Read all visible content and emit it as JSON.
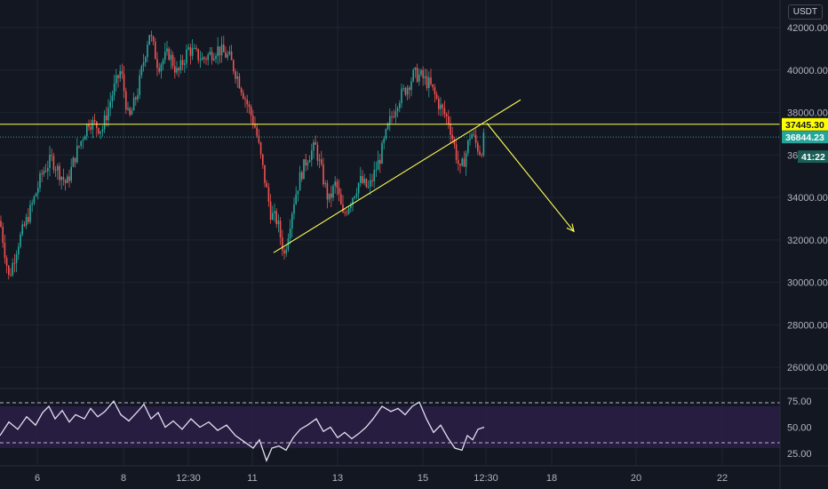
{
  "currency": "USDT",
  "colors": {
    "background": "#131722",
    "grid": "#1f2433",
    "up": "#26a69a",
    "down": "#ef5350",
    "annotation": "#ffff55",
    "rsi_line": "#e3e0f0",
    "rsi_band": "#2a1f45",
    "price_tag": "#26a69a",
    "level_tag": "#ffff00"
  },
  "chart_data": [
    {
      "type": "candlestick",
      "title": "",
      "xlabel": "",
      "ylabel": "",
      "x_tick_labels": [
        "6",
        "8",
        "12:30",
        "11",
        "13",
        "15",
        "12:30",
        "18",
        "20",
        "22"
      ],
      "y_tick_labels": [
        "42000.00",
        "40000.00",
        "38000.00",
        "36000.00",
        "34000.00",
        "32000.00",
        "30000.00",
        "28000.00",
        "26000.00"
      ],
      "ylim": [
        25000,
        43300
      ],
      "grid": true,
      "horizontal_level": 37445.3,
      "horizontal_level_label": "37445.30",
      "last_price": 36844.23,
      "last_price_label": "36844.23",
      "countdown_label": "41:22",
      "close_path": [
        [
          0,
          32900
        ],
        [
          10,
          30200
        ],
        [
          20,
          31800
        ],
        [
          35,
          33500
        ],
        [
          48,
          35200
        ],
        [
          58,
          35800
        ],
        [
          75,
          34600
        ],
        [
          85,
          36000
        ],
        [
          100,
          37600
        ],
        [
          115,
          37200
        ],
        [
          128,
          39100
        ],
        [
          136,
          40000
        ],
        [
          145,
          37600
        ],
        [
          155,
          39000
        ],
        [
          168,
          41800
        ],
        [
          178,
          40200
        ],
        [
          190,
          40800
        ],
        [
          200,
          39800
        ],
        [
          212,
          41000
        ],
        [
          228,
          40500
        ],
        [
          245,
          41000
        ],
        [
          258,
          40600
        ],
        [
          268,
          39600
        ],
        [
          280,
          38200
        ],
        [
          288,
          37200
        ],
        [
          296,
          35300
        ],
        [
          305,
          33200
        ],
        [
          312,
          32900
        ],
        [
          320,
          31300
        ],
        [
          330,
          33700
        ],
        [
          338,
          35000
        ],
        [
          346,
          35900
        ],
        [
          355,
          36400
        ],
        [
          362,
          35200
        ],
        [
          370,
          33800
        ],
        [
          378,
          34700
        ],
        [
          386,
          33100
        ],
        [
          395,
          33900
        ],
        [
          405,
          34800
        ],
        [
          415,
          34400
        ],
        [
          428,
          35900
        ],
        [
          438,
          37500
        ],
        [
          448,
          38600
        ],
        [
          458,
          39200
        ],
        [
          466,
          39800
        ],
        [
          474,
          39700
        ],
        [
          484,
          39300
        ],
        [
          495,
          38300
        ],
        [
          505,
          37600
        ],
        [
          512,
          36300
        ],
        [
          518,
          35200
        ],
        [
          524,
          36000
        ],
        [
          530,
          37100
        ],
        [
          536,
          36500
        ],
        [
          541,
          36100
        ],
        [
          545,
          36840
        ]
      ],
      "annotations": {
        "support_trendline": [
          [
            308,
            31400
          ],
          [
            586,
            38600
          ]
        ],
        "projection_arrow": [
          [
            548,
            37500
          ],
          [
            646,
            32400
          ]
        ]
      }
    },
    {
      "type": "line",
      "title": "",
      "y_tick_labels": [
        "75.00",
        "50.00",
        "25.00"
      ],
      "ylim": [
        13,
        87
      ],
      "band": [
        30,
        70
      ],
      "rsi_path": [
        [
          0,
          42
        ],
        [
          10,
          55
        ],
        [
          20,
          48
        ],
        [
          30,
          60
        ],
        [
          40,
          52
        ],
        [
          48,
          64
        ],
        [
          55,
          70
        ],
        [
          62,
          58
        ],
        [
          70,
          66
        ],
        [
          78,
          55
        ],
        [
          85,
          62
        ],
        [
          95,
          58
        ],
        [
          102,
          68
        ],
        [
          110,
          60
        ],
        [
          118,
          65
        ],
        [
          128,
          75
        ],
        [
          136,
          62
        ],
        [
          145,
          56
        ],
        [
          155,
          65
        ],
        [
          162,
          72
        ],
        [
          170,
          58
        ],
        [
          178,
          64
        ],
        [
          186,
          50
        ],
        [
          195,
          56
        ],
        [
          205,
          48
        ],
        [
          215,
          58
        ],
        [
          225,
          50
        ],
        [
          235,
          55
        ],
        [
          245,
          47
        ],
        [
          255,
          52
        ],
        [
          265,
          42
        ],
        [
          275,
          36
        ],
        [
          285,
          30
        ],
        [
          292,
          38
        ],
        [
          300,
          18
        ],
        [
          306,
          30
        ],
        [
          314,
          32
        ],
        [
          322,
          28
        ],
        [
          330,
          40
        ],
        [
          338,
          48
        ],
        [
          346,
          52
        ],
        [
          356,
          58
        ],
        [
          364,
          46
        ],
        [
          372,
          50
        ],
        [
          380,
          40
        ],
        [
          388,
          45
        ],
        [
          396,
          39
        ],
        [
          404,
          44
        ],
        [
          412,
          50
        ],
        [
          420,
          58
        ],
        [
          430,
          70
        ],
        [
          440,
          65
        ],
        [
          448,
          68
        ],
        [
          456,
          62
        ],
        [
          464,
          70
        ],
        [
          472,
          74
        ],
        [
          480,
          58
        ],
        [
          488,
          45
        ],
        [
          496,
          52
        ],
        [
          504,
          40
        ],
        [
          512,
          30
        ],
        [
          520,
          28
        ],
        [
          526,
          42
        ],
        [
          532,
          38
        ],
        [
          538,
          48
        ],
        [
          545,
          50
        ]
      ]
    }
  ]
}
